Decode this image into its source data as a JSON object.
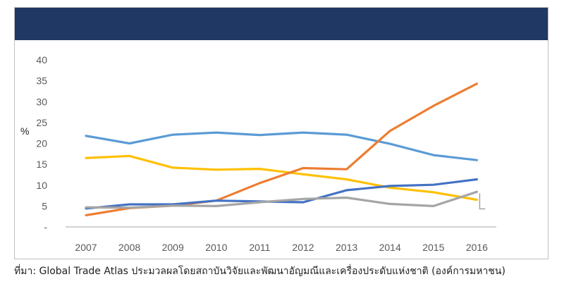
{
  "colors": {
    "banner": "#1f3864",
    "axis": "#a6a6a6",
    "ticks": "#595959"
  },
  "source": "ที่มา: Global Trade Atlas ประมวลผลโดยสถาบันวิจัยและพัฒนาอัญมณีและเครื่องประดับแห่งชาติ (องค์การมหาชน)",
  "chart_data": {
    "type": "line",
    "title": "",
    "ylabel": "%",
    "xlabel": "",
    "ylim": [
      0,
      40
    ],
    "y_ticks": [
      "-",
      "5",
      "10",
      "15",
      "20",
      "25",
      "30",
      "35",
      "40"
    ],
    "categories": [
      "2007",
      "2008",
      "2009",
      "2010",
      "2011",
      "2012",
      "2013",
      "2014",
      "2015",
      "2016"
    ],
    "grid": false,
    "legend": "none",
    "series": [
      {
        "color": "#5b9bd5",
        "values": [
          21.8,
          20.0,
          22.1,
          22.6,
          22.0,
          22.6,
          22.1,
          19.9,
          17.2,
          16.0
        ]
      },
      {
        "color": "#ffc000",
        "values": [
          16.5,
          17.0,
          14.2,
          13.7,
          13.9,
          12.6,
          11.4,
          9.4,
          8.3,
          6.5
        ]
      },
      {
        "color": "#ed7d31",
        "values": [
          2.8,
          4.5,
          5.1,
          6.3,
          10.5,
          14.1,
          13.8,
          23.0,
          29.0,
          34.3
        ]
      },
      {
        "color": "#4472c4",
        "values": [
          4.4,
          5.4,
          5.4,
          6.3,
          6.1,
          5.9,
          8.8,
          9.8,
          10.1,
          11.4
        ]
      },
      {
        "color": "#a5a5a5",
        "values": [
          4.7,
          4.6,
          5.1,
          5.0,
          5.9,
          6.7,
          7.0,
          5.5,
          5.0,
          8.4
        ]
      }
    ]
  }
}
